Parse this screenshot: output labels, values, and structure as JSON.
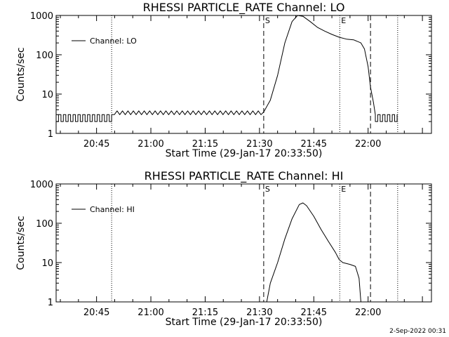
{
  "footer": {
    "timestamp": "2-Sep-2022 00:31"
  },
  "colors": {
    "line": "#000000",
    "background": "#ffffff"
  },
  "chart_data": [
    {
      "type": "line",
      "title": "RHESSI PARTICLE_RATE Channel: LO",
      "xlabel": "Start Time (29-Jan-17 20:33:50)",
      "ylabel": "Counts/sec",
      "y_scale": "log",
      "ylim": [
        1,
        1000
      ],
      "y_ticks": [
        1,
        10,
        100,
        1000
      ],
      "y_tick_labels": [
        "1",
        "10",
        "100",
        "1000"
      ],
      "xlim": [
        "20:33:50",
        "22:17:30"
      ],
      "x_ticks": [
        "20:45",
        "21:00",
        "21:15",
        "21:30",
        "21:45",
        "22:00"
      ],
      "legend": {
        "position": "top-left",
        "entries": [
          "Channel: LO"
        ]
      },
      "grid": false,
      "markers": [
        {
          "label": "",
          "time": "20:33:50",
          "style": "dotted"
        },
        {
          "label": "",
          "time": "20:49:10",
          "style": "dotted"
        },
        {
          "label": "S",
          "time": "21:31:10",
          "style": "dashed"
        },
        {
          "label": "E",
          "time": "21:52:10",
          "style": "dotted"
        },
        {
          "label": "",
          "time": "22:00:40",
          "style": "dashed"
        },
        {
          "label": "",
          "time": "22:08:10",
          "style": "dotted"
        }
      ],
      "series": [
        {
          "name": "Channel: LO",
          "noise": {
            "start": "20:33:50",
            "end": "20:49:10",
            "low": 2,
            "high": 3
          },
          "x": [
            "20:49:10",
            "21:31:10",
            "21:33:00",
            "21:35:00",
            "21:37:00",
            "21:39:00",
            "21:40:30",
            "21:42:00",
            "21:44:00",
            "21:46:00",
            "21:48:00",
            "21:50:00",
            "21:52:00",
            "21:54:00",
            "21:56:00",
            "21:58:00",
            "21:59:00",
            "22:00:00",
            "22:00:40",
            "22:01:30",
            "22:02:00"
          ],
          "y": [
            3,
            3.5,
            7,
            30,
            200,
            700,
            1000,
            950,
            700,
            500,
            400,
            330,
            280,
            250,
            240,
            200,
            140,
            50,
            15,
            6,
            3
          ],
          "noise_after": {
            "start": "22:02:00",
            "end": "22:08:10",
            "low": 2,
            "high": 3
          }
        }
      ]
    },
    {
      "type": "line",
      "title": "RHESSI PARTICLE_RATE Channel: HI",
      "xlabel": "Start Time (29-Jan-17 20:33:50)",
      "ylabel": "Counts/sec",
      "y_scale": "log",
      "ylim": [
        1,
        1000
      ],
      "y_ticks": [
        1,
        10,
        100,
        1000
      ],
      "y_tick_labels": [
        "1",
        "10",
        "100",
        "1000"
      ],
      "xlim": [
        "20:33:50",
        "22:17:30"
      ],
      "x_ticks": [
        "20:45",
        "21:00",
        "21:15",
        "21:30",
        "21:45",
        "22:00"
      ],
      "legend": {
        "position": "top-left",
        "entries": [
          "Channel: HI"
        ]
      },
      "grid": false,
      "markers": [
        {
          "label": "",
          "time": "20:33:50",
          "style": "dotted"
        },
        {
          "label": "",
          "time": "20:49:10",
          "style": "dotted"
        },
        {
          "label": "S",
          "time": "21:31:10",
          "style": "dashed"
        },
        {
          "label": "E",
          "time": "21:52:10",
          "style": "dotted"
        },
        {
          "label": "",
          "time": "22:00:40",
          "style": "dashed"
        },
        {
          "label": "",
          "time": "22:08:10",
          "style": "dotted"
        }
      ],
      "series": [
        {
          "name": "Channel: HI",
          "x": [
            "21:32:00",
            "21:33:00",
            "21:35:00",
            "21:37:00",
            "21:39:00",
            "21:41:00",
            "21:42:00",
            "21:43:00",
            "21:45:00",
            "21:47:00",
            "21:49:00",
            "21:51:00",
            "21:52:00",
            "21:53:00",
            "21:55:00",
            "21:56:30",
            "21:57:30",
            "21:58:00"
          ],
          "y": [
            1,
            3,
            10,
            40,
            130,
            300,
            330,
            280,
            150,
            70,
            35,
            18,
            12,
            10,
            9,
            8,
            4,
            1
          ],
          "noise_after": null
        }
      ]
    }
  ]
}
